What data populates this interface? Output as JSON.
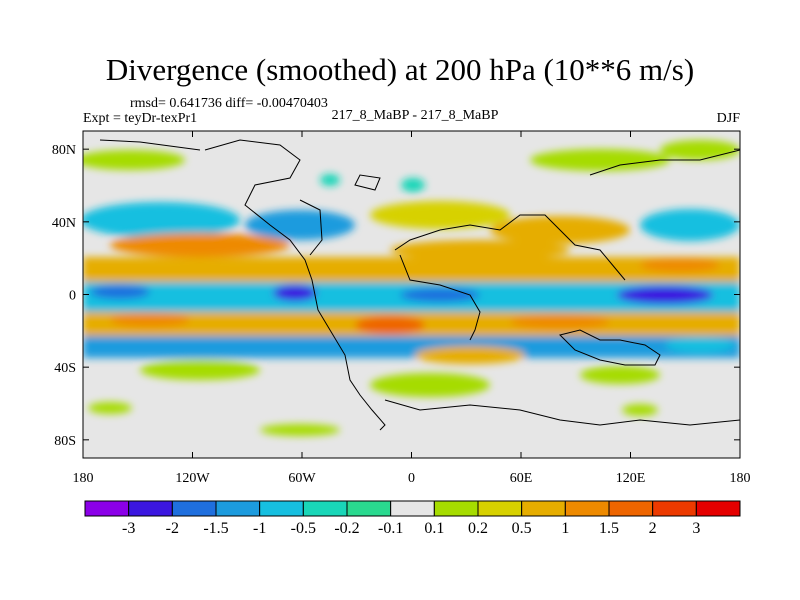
{
  "chart_data": {
    "type": "heatmap",
    "title": "Divergence (smoothed) at 200 hPa (10**6 m/s)",
    "rmsd_line": "rmsd= 0.641736 diff= -0.00470403",
    "expt_line": "Expt = teyDr-texPr1",
    "center_label": "217_8_MaBP - 217_8_MaBP",
    "season": "DJF",
    "x_ticks": [
      {
        "value": -180,
        "label": "180"
      },
      {
        "value": -120,
        "label": "120W"
      },
      {
        "value": -60,
        "label": "60W"
      },
      {
        "value": 0,
        "label": "0"
      },
      {
        "value": 60,
        "label": "60E"
      },
      {
        "value": 120,
        "label": "120E"
      },
      {
        "value": 180,
        "label": "180"
      }
    ],
    "y_ticks": [
      {
        "value": 80,
        "label": "80N"
      },
      {
        "value": 40,
        "label": "40N"
      },
      {
        "value": 0,
        "label": "0"
      },
      {
        "value": -40,
        "label": "40S"
      },
      {
        "value": -80,
        "label": "80S"
      }
    ],
    "xlim": [
      -180,
      180
    ],
    "ylim": [
      -90,
      90
    ],
    "colorbar": {
      "colors": [
        "#8b00e8",
        "#3b16e0",
        "#1f6fde",
        "#1c9bde",
        "#16bfe0",
        "#19d6b8",
        "#2ad98f",
        "#e6e6e6",
        "#a6dc00",
        "#d7d100",
        "#e6ad00",
        "#ee8a00",
        "#ee6500",
        "#ec3a00",
        "#e50000"
      ],
      "labels": [
        "-3",
        "-2",
        "-1.5",
        "-1",
        "-0.5",
        "-0.2",
        "-0.1",
        "0.1",
        "0.2",
        "0.5",
        "1",
        "1.5",
        "2",
        "3"
      ]
    }
  }
}
